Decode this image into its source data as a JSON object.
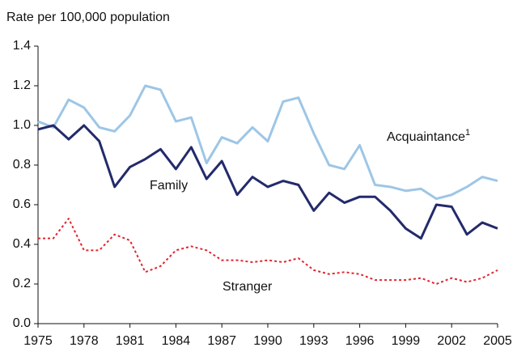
{
  "chart_data": {
    "type": "line",
    "y_label": "Rate per 100,000 population",
    "x": [
      1975,
      1976,
      1977,
      1978,
      1979,
      1980,
      1981,
      1982,
      1983,
      1984,
      1985,
      1986,
      1987,
      1988,
      1989,
      1990,
      1991,
      1992,
      1993,
      1994,
      1995,
      1996,
      1997,
      1998,
      1999,
      2000,
      2001,
      2002,
      2003,
      2004,
      2005
    ],
    "xlim": [
      1975,
      2005
    ],
    "xticks": [
      1975,
      1978,
      1981,
      1984,
      1987,
      1990,
      1993,
      1996,
      1999,
      2002,
      2005
    ],
    "ylim": [
      0,
      1.4
    ],
    "yticks": [
      {
        "value": 0,
        "label": "0.0"
      },
      0.2,
      0.4,
      0.6,
      0.8,
      {
        "value": 1,
        "label": "1.0"
      },
      1.2,
      1.4
    ],
    "grid": false,
    "series": [
      {
        "name": "Acquaintance",
        "footnote": "1",
        "color": "#9dc6e6",
        "style": "solid",
        "values": [
          1.02,
          0.99,
          1.13,
          1.09,
          0.99,
          0.97,
          1.05,
          1.2,
          1.18,
          1.02,
          1.04,
          0.81,
          0.94,
          0.91,
          0.99,
          0.92,
          1.12,
          1.14,
          0.96,
          0.8,
          0.78,
          0.9,
          0.7,
          0.69,
          0.67,
          0.68,
          0.63,
          0.65,
          0.69,
          0.74,
          0.72
        ]
      },
      {
        "name": "Family",
        "color": "#232a6b",
        "style": "solid",
        "values": [
          0.98,
          1.0,
          0.93,
          1.0,
          0.92,
          0.69,
          0.79,
          0.83,
          0.88,
          0.78,
          0.89,
          0.73,
          0.82,
          0.65,
          0.74,
          0.69,
          0.72,
          0.7,
          0.57,
          0.66,
          0.61,
          0.64,
          0.64,
          0.57,
          0.48,
          0.43,
          0.6,
          0.59,
          0.45,
          0.51,
          0.48
        ]
      },
      {
        "name": "Stranger",
        "color": "#e0262e",
        "style": "dotted",
        "values": [
          0.43,
          0.43,
          0.53,
          0.37,
          0.37,
          0.45,
          0.42,
          0.26,
          0.29,
          0.37,
          0.39,
          0.37,
          0.32,
          0.32,
          0.31,
          0.32,
          0.31,
          0.33,
          0.27,
          0.25,
          0.26,
          0.25,
          0.22,
          0.22,
          0.22,
          0.23,
          0.2,
          0.23,
          0.21,
          0.23,
          0.27
        ]
      }
    ]
  }
}
